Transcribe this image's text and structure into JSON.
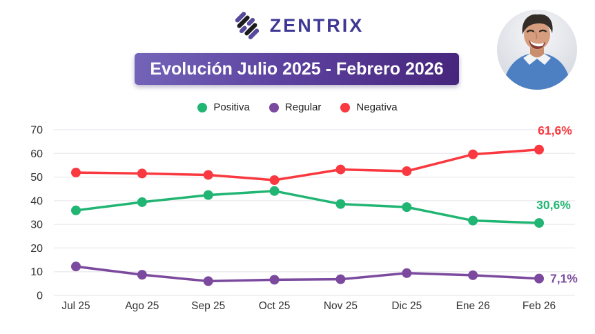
{
  "header": {
    "brand": "ZENTRIX",
    "title": "Evolución Julio 2025 - Febrero 2026"
  },
  "icons": {
    "brand_icon": "zentrix-diagonal-stripes-mark",
    "avatar": "smiling-man-blue-sweater-photo"
  },
  "colors": {
    "brand_text": "#3e3894",
    "banner_gradient_start": "#7465b9",
    "banner_gradient_end": "#46257c",
    "grid": "#edecf1",
    "axis_text": "#333333"
  },
  "chart_data": {
    "type": "line",
    "title": "Evolución Julio 2025 - Febrero 2026",
    "categories": [
      "Jul 25",
      "Ago 25",
      "Sep 25",
      "Oct 25",
      "Nov 25",
      "Dic 25",
      "Ene 26",
      "Feb 26"
    ],
    "series": [
      {
        "name": "Positiva",
        "color": "#21b573",
        "values": [
          35.9,
          39.4,
          42.4,
          44.1,
          38.6,
          37.3,
          31.6,
          30.6
        ],
        "end_label": "30,6%"
      },
      {
        "name": "Regular",
        "color": "#7b4a9e",
        "values": [
          12.2,
          8.7,
          6.0,
          6.6,
          6.8,
          9.4,
          8.5,
          7.1
        ],
        "end_label": "7,1%"
      },
      {
        "name": "Negativa",
        "color": "#f9383f",
        "values": [
          51.9,
          51.5,
          50.9,
          48.7,
          53.2,
          52.5,
          59.6,
          61.6
        ],
        "end_label": "61,6%"
      }
    ],
    "xlabel": "",
    "ylabel": "",
    "ylim": [
      0,
      70
    ],
    "yticks": [
      0,
      10,
      20,
      30,
      40,
      50,
      60,
      70
    ],
    "grid": true,
    "legend_position": "top-center"
  }
}
